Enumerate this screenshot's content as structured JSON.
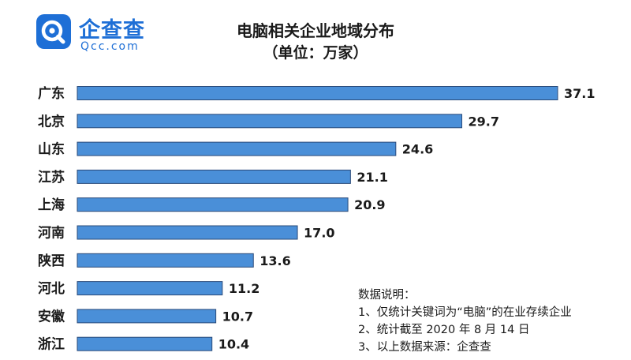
{
  "brand": {
    "name_cn": "企查查",
    "name_en": "Qcc.com",
    "logo_color": "#1E6FD6",
    "logo_icon": "qcc-logo-icon"
  },
  "chart_data": {
    "type": "bar",
    "orientation": "horizontal",
    "title": "电脑相关企业地域分布",
    "subtitle": "（单位：万家）",
    "categories": [
      "广东",
      "北京",
      "山东",
      "江苏",
      "上海",
      "河南",
      "陕西",
      "河北",
      "安徽",
      "浙江"
    ],
    "values": [
      37.1,
      29.7,
      24.6,
      21.1,
      20.9,
      17.0,
      13.6,
      11.2,
      10.7,
      10.4
    ],
    "value_labels": [
      "37.1",
      "29.7",
      "24.6",
      "21.1",
      "20.9",
      "17.0",
      "13.6",
      "11.2",
      "10.7",
      "10.4"
    ],
    "bar_color": "#4A8FD8",
    "bar_edge_color": "#2B4B7A",
    "xlim": [
      0,
      37.1
    ],
    "grid": false,
    "legend": "none"
  },
  "notes": {
    "heading": "数据说明：",
    "lines": [
      "1、仅统计关键词为“电脑”的在业存续企业",
      "2、统计截至 2020 年 8 月 14 日",
      "3、以上数据来源：企查查"
    ]
  }
}
